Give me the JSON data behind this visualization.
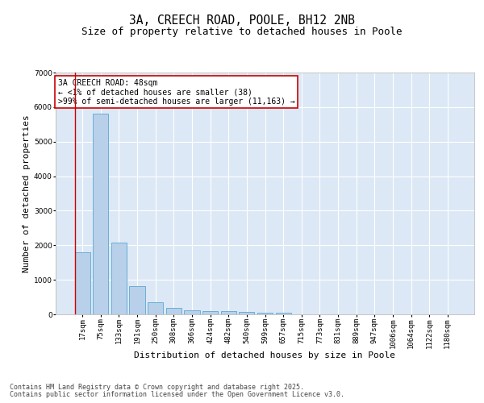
{
  "title": "3A, CREECH ROAD, POOLE, BH12 2NB",
  "subtitle": "Size of property relative to detached houses in Poole",
  "xlabel": "Distribution of detached houses by size in Poole",
  "ylabel": "Number of detached properties",
  "categories": [
    "17sqm",
    "75sqm",
    "133sqm",
    "191sqm",
    "250sqm",
    "308sqm",
    "366sqm",
    "424sqm",
    "482sqm",
    "540sqm",
    "599sqm",
    "657sqm",
    "715sqm",
    "773sqm",
    "831sqm",
    "889sqm",
    "947sqm",
    "1006sqm",
    "1064sqm",
    "1122sqm",
    "1180sqm"
  ],
  "values": [
    1800,
    5800,
    2080,
    820,
    340,
    190,
    120,
    100,
    100,
    75,
    50,
    50,
    0,
    0,
    0,
    0,
    0,
    0,
    0,
    0,
    0
  ],
  "bar_color": "#b8d0ea",
  "bar_edge_color": "#6aaed6",
  "vline_color": "#cc0000",
  "annotation_text": "3A CREECH ROAD: 48sqm\n← <1% of detached houses are smaller (38)\n>99% of semi-detached houses are larger (11,163) →",
  "annotation_box_color": "#ffffff",
  "annotation_box_edge": "#cc0000",
  "ylim": [
    0,
    7000
  ],
  "yticks": [
    0,
    1000,
    2000,
    3000,
    4000,
    5000,
    6000,
    7000
  ],
  "background_color": "#dce8f5",
  "footer_line1": "Contains HM Land Registry data © Crown copyright and database right 2025.",
  "footer_line2": "Contains public sector information licensed under the Open Government Licence v3.0.",
  "title_fontsize": 10.5,
  "subtitle_fontsize": 9,
  "tick_fontsize": 6.5,
  "ylabel_fontsize": 8,
  "xlabel_fontsize": 8,
  "annotation_fontsize": 7,
  "footer_fontsize": 6
}
